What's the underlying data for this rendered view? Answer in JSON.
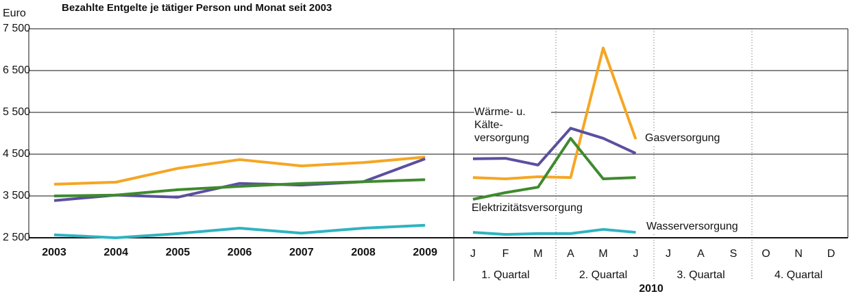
{
  "chart_data": [
    {
      "type": "line",
      "title": "Bezahlte Entgelte je tätiger Person und Monat seit 2003",
      "y_unit": "Euro",
      "categories": [
        "2003",
        "2004",
        "2005",
        "2006",
        "2007",
        "2008",
        "2009"
      ],
      "ylim": [
        2500,
        7500
      ],
      "yticks": [
        {
          "value": 2500,
          "label": "2 500"
        },
        {
          "value": 3500,
          "label": "3 500"
        },
        {
          "value": 4500,
          "label": "4 500"
        },
        {
          "value": 5500,
          "label": "5 500"
        },
        {
          "value": 6500,
          "label": "6 500"
        },
        {
          "value": 7500,
          "label": "7 500"
        }
      ],
      "grid": true,
      "series": [
        {
          "color": "#f5a623",
          "values": [
            3780,
            3830,
            4160,
            4370,
            4220,
            4300,
            4430
          ]
        },
        {
          "color": "#5b4fa0",
          "values": [
            3390,
            3520,
            3470,
            3800,
            3760,
            3840,
            4390
          ]
        },
        {
          "color": "#3f8a2e",
          "values": [
            3500,
            3520,
            3650,
            3730,
            3800,
            3840,
            3890
          ]
        },
        {
          "color": "#2fb3c0",
          "values": [
            2570,
            2500,
            2600,
            2730,
            2610,
            2730,
            2800
          ]
        }
      ]
    },
    {
      "type": "line",
      "year_label": "2010",
      "categories": [
        "J",
        "F",
        "M",
        "A",
        "M",
        "J",
        "J",
        "A",
        "S",
        "O",
        "N",
        "D"
      ],
      "quarters": [
        "1. Quartal",
        "2. Quartal",
        "3. Quartal",
        "4. Quartal"
      ],
      "ylim": [
        2500,
        7500
      ],
      "series": [
        {
          "name": "Gasversorgung",
          "color": "#f5a623",
          "values": [
            3940,
            3910,
            3960,
            3940,
            7040,
            4860,
            null,
            null,
            null,
            null,
            null,
            null
          ]
        },
        {
          "name": "Wärme- u. Kälte-versorgung",
          "color": "#5b4fa0",
          "values": [
            4390,
            4400,
            4240,
            5120,
            4880,
            4520,
            null,
            null,
            null,
            null,
            null,
            null
          ]
        },
        {
          "name": "Elektrizitätsversorgung",
          "color": "#3f8a2e",
          "values": [
            3420,
            3580,
            3710,
            4880,
            3910,
            3940,
            null,
            null,
            null,
            null,
            null,
            null
          ]
        },
        {
          "name": "Wasserversorgung",
          "color": "#2fb3c0",
          "values": [
            2630,
            2580,
            2600,
            2600,
            2700,
            2630,
            null,
            null,
            null,
            null,
            null,
            null
          ]
        }
      ]
    }
  ]
}
